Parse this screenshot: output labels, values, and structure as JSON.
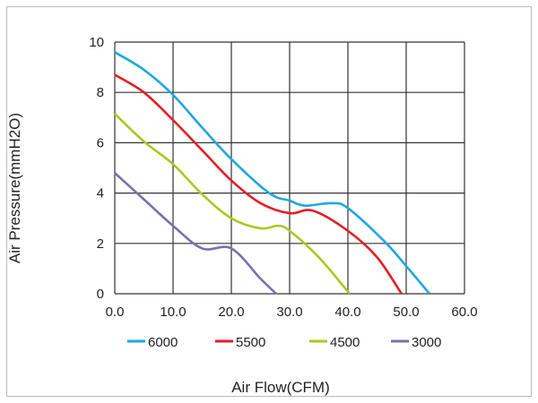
{
  "chart_data": {
    "type": "line",
    "title": "",
    "xlabel": "Air Flow(CFM)",
    "ylabel": "Air Pressure(mmH2O)",
    "xlim": [
      0,
      60
    ],
    "ylim": [
      0,
      10
    ],
    "xticks": [
      "0.0",
      "10.0",
      "20.0",
      "30.0",
      "40.0",
      "50.0",
      "60.0"
    ],
    "yticks": [
      "0",
      "2",
      "4",
      "6",
      "8",
      "10"
    ],
    "grid": true,
    "legend_position": "bottom",
    "series": [
      {
        "name": "6000",
        "color": "#1ea7e1",
        "x": [
          0,
          5,
          10,
          15,
          20,
          26.5,
          30,
          32.6,
          37.2,
          40,
          46.4,
          50,
          54
        ],
        "y": [
          9.6,
          8.9,
          7.9,
          6.6,
          5.35,
          4.0,
          3.7,
          3.5,
          3.6,
          3.4,
          2.05,
          1.1,
          0
        ]
      },
      {
        "name": "5500",
        "color": "#e31e24",
        "x": [
          0,
          5,
          10,
          15,
          20,
          25,
          30,
          34,
          40,
          45,
          49.2
        ],
        "y": [
          8.7,
          8.0,
          6.9,
          5.7,
          4.5,
          3.6,
          3.2,
          3.3,
          2.5,
          1.45,
          0
        ]
      },
      {
        "name": "4500",
        "color": "#a6cb1e",
        "x": [
          0,
          5,
          10,
          15,
          20,
          25,
          28,
          30,
          35,
          40.3
        ],
        "y": [
          7.15,
          6.05,
          5.15,
          3.95,
          3.0,
          2.6,
          2.7,
          2.5,
          1.45,
          0
        ]
      },
      {
        "name": "3000",
        "color": "#7b6fb0",
        "x": [
          0,
          5,
          10,
          15,
          20,
          25,
          27.7
        ],
        "y": [
          4.8,
          3.75,
          2.7,
          1.8,
          1.8,
          0.6,
          0
        ]
      }
    ]
  }
}
